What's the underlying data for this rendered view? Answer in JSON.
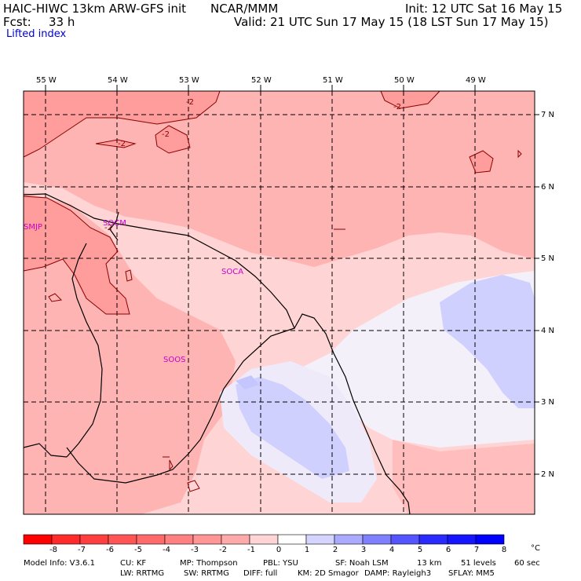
{
  "header": {
    "model": "HAIC-HIWC 13km ARW-GFS init",
    "org": "NCAR/MMM",
    "init": "Init: 12 UTC Sat 16 May 15",
    "fcst_label": "Fcst:",
    "fcst_value": "33 h",
    "valid": "Valid: 21 UTC Sun 17 May 15 (18 LST Sun 17 May 15)",
    "field": "Lifted index"
  },
  "map": {
    "longitudes": [
      "55 W",
      "54 W",
      "53 W",
      "52 W",
      "51 W",
      "50 W",
      "49 W"
    ],
    "latitudes": [
      "7 N",
      "6 N",
      "5 N",
      "4 N",
      "3 N",
      "2 N"
    ],
    "stations": [
      "SMJP",
      "SOCM",
      "SOCA",
      "SOOS"
    ],
    "contour_labels": [
      "-2",
      "-2",
      "-2",
      "-2",
      "-2"
    ]
  },
  "colorbar": {
    "ticks": [
      "-8",
      "-7",
      "-6",
      "-5",
      "-4",
      "-3",
      "-2",
      "-1",
      "0",
      "1",
      "2",
      "3",
      "4",
      "5",
      "6",
      "7",
      "8"
    ],
    "unit": "°C",
    "colors": [
      "#ff0000",
      "#ff2a2a",
      "#ff3f3f",
      "#ff5555",
      "#ff6a6a",
      "#ff8080",
      "#ff9595",
      "#ffaaaa",
      "#ffd4d4",
      "#ffffff",
      "#d4d4ff",
      "#aaaaff",
      "#8080ff",
      "#5555ff",
      "#2a2aff",
      "#1515ff",
      "#0000ff"
    ]
  },
  "footer": {
    "line1": [
      "Model Info: V3.6.1",
      "CU: KF",
      "MP: Thompson",
      "PBL: YSU",
      "SF: Noah LSM",
      "13 km",
      "51 levels",
      "60 sec"
    ],
    "line2": [
      "LW: RRTMG",
      "SW: RRTMG",
      "DIFF: full",
      "KM: 2D Smagor",
      "DAMP: Rayleigh3",
      "SFLAY: MM5"
    ]
  }
}
